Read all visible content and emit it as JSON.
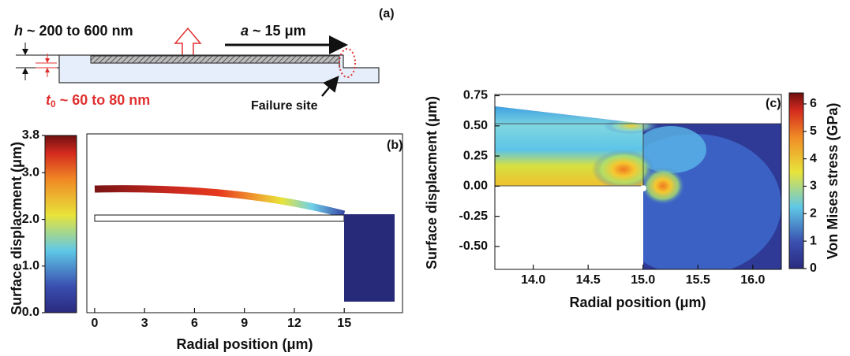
{
  "panel_a": {
    "label": "(a)",
    "h": {
      "symbol": "h",
      "text": "~ 200 to 600 nm"
    },
    "a": {
      "symbol": "a",
      "text": "~ 15",
      "unit": "μm"
    },
    "t0": {
      "symbol": "t",
      "subscript": "0",
      "text": "~ 60 to 80 nm"
    },
    "failure_site": "Failure site"
  },
  "panel_b": {
    "label": "(b)",
    "x_label": "Radial position (μm)",
    "y_label": "Surface displacment (μm)",
    "xlim": [
      -0.47,
      18.5
    ],
    "xticks": [
      0,
      3,
      6,
      9,
      12,
      15
    ],
    "colorbar": {
      "lim": [
        0,
        3.8
      ],
      "ticks": [
        {
          "value": 0,
          "label": "0.0"
        },
        {
          "value": 1,
          "label": "1.0"
        },
        {
          "value": 2,
          "label": "2.0"
        },
        {
          "value": 3,
          "label": "3.0"
        },
        {
          "value": 3.8,
          "label": "3.8"
        }
      ]
    }
  },
  "panel_c": {
    "label": "(c)",
    "x_label": "Radial position (μm)",
    "y_label": "Surface displacment (μm)",
    "colorbar_label": "Von Mises stress (GPa)",
    "xlim": [
      13.65,
      16.26
    ],
    "xticks": [
      {
        "value": 14,
        "label": "14.0"
      },
      {
        "value": 14.5,
        "label": "14.5"
      },
      {
        "value": 15,
        "label": "15.0"
      },
      {
        "value": 15.5,
        "label": "15.5"
      },
      {
        "value": 16,
        "label": "16.0"
      }
    ],
    "ylim": [
      -0.69,
      0.76
    ],
    "yticks": [
      {
        "value": 0.75,
        "label": "0.75"
      },
      {
        "value": 0.5,
        "label": "0.50"
      },
      {
        "value": 0.25,
        "label": "0.25"
      },
      {
        "value": 0,
        "label": "0.00"
      },
      {
        "value": -0.25,
        "label": "-0.25"
      },
      {
        "value": -0.5,
        "label": "-0.50"
      }
    ],
    "colorbar": {
      "lim": [
        0,
        6.4
      ],
      "ticks": [
        0,
        1,
        2,
        3,
        4,
        5,
        6
      ]
    }
  }
}
